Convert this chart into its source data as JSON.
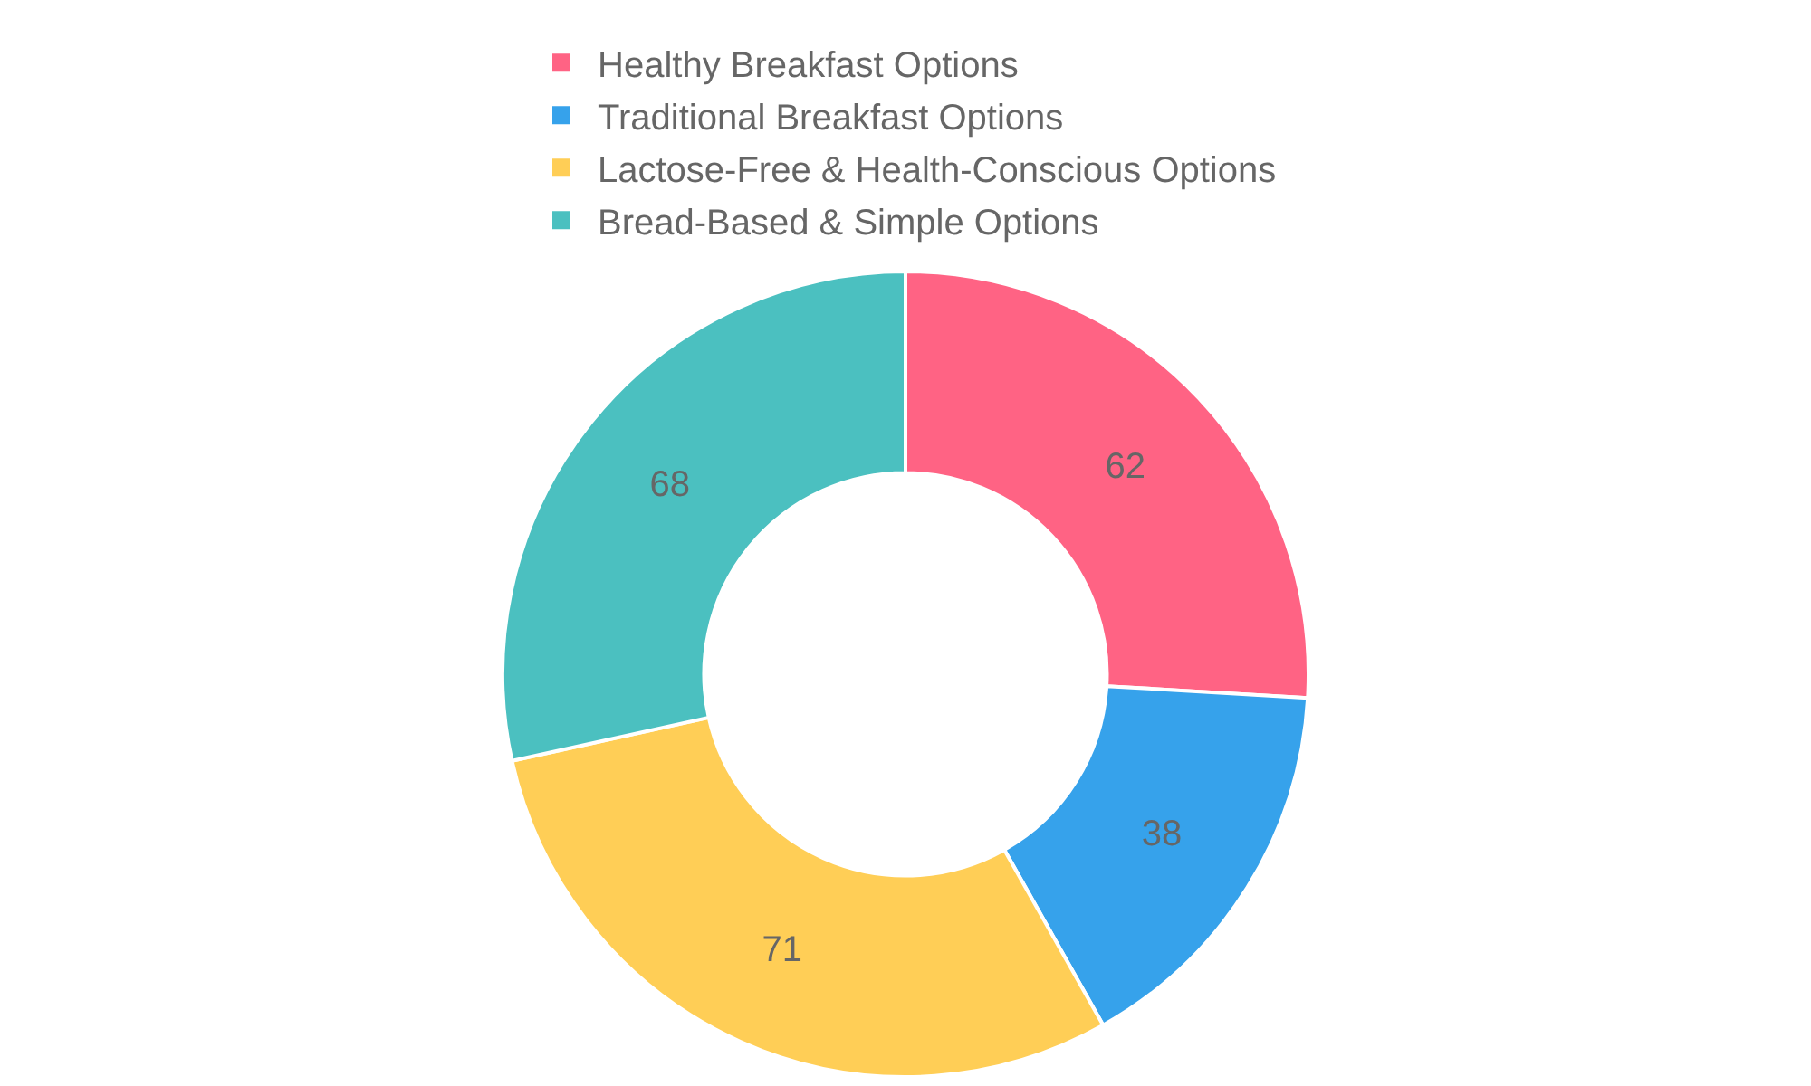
{
  "chart_data": {
    "type": "donut",
    "categories": [
      "Healthy Breakfast Options",
      "Traditional Breakfast Options",
      "Lactose-Free & Health-Conscious Options",
      "Bread-Based & Simple Options"
    ],
    "values": [
      62,
      38,
      71,
      68
    ],
    "colors": [
      "#ff6384",
      "#36a2eb",
      "#ffce56",
      "#4bc0c0"
    ],
    "data_labels": true,
    "legend": "top"
  }
}
